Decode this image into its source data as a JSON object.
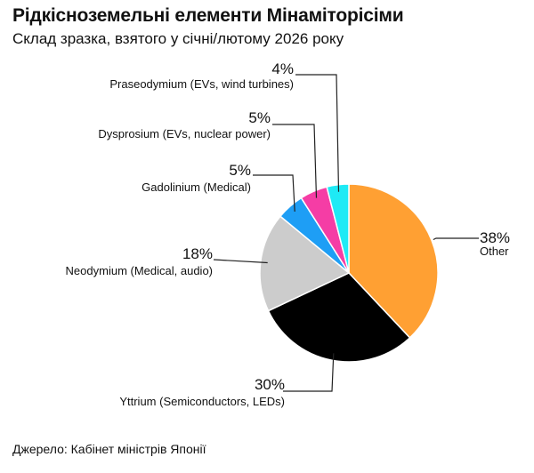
{
  "header": {
    "title": "Рідкісноземельні елементи Мінаміторісіми",
    "subtitle": "Склад зразка, взятого у січні/лютому 2026 року"
  },
  "footer": {
    "source": "Джерело: Кабінет міністрів Японії"
  },
  "chart_data": {
    "type": "pie",
    "title": "Рідкісноземельні елементи Мінаміторісіми",
    "subtitle": "Склад зразка, взятого у січні/лютому 2026 року",
    "unit": "%",
    "start": "12 o'clock, clockwise",
    "slices": [
      {
        "label": "Other",
        "value": 38,
        "value_label": "38%",
        "color": "#FFA033"
      },
      {
        "label": "Yttrium (Semiconductors, LEDs)",
        "value": 30,
        "value_label": "30%",
        "color": "#000000"
      },
      {
        "label": "Neodymium (Medical, audio)",
        "value": 18,
        "value_label": "18%",
        "color": "#CCCCCC"
      },
      {
        "label": "Gadolinium (Medical)",
        "value": 5,
        "value_label": "5%",
        "color": "#1E9EF5"
      },
      {
        "label": "Dysprosium (EVs, nuclear power)",
        "value": 5,
        "value_label": "5%",
        "color": "#F53DA5"
      },
      {
        "label": "Praseodymium (EVs, wind turbines)",
        "value": 4,
        "value_label": "4%",
        "color": "#1EEAF5"
      }
    ],
    "legend": "none — labels placed beside slices with leader lines"
  }
}
